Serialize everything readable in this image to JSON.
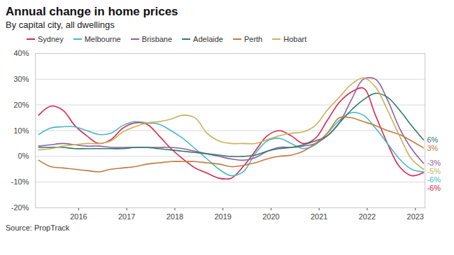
{
  "chart_data": {
    "type": "line",
    "title": "Annual change in home prices",
    "subtitle": "By capital city, all dwellings",
    "source": "Source: PropTrack",
    "legend": "top",
    "grid": true,
    "x": [
      2015.17,
      2015.42,
      2015.67,
      2015.92,
      2016.17,
      2016.42,
      2016.67,
      2016.92,
      2017.17,
      2017.42,
      2017.67,
      2017.92,
      2018.17,
      2018.42,
      2018.67,
      2018.92,
      2019.17,
      2019.42,
      2019.67,
      2019.92,
      2020.17,
      2020.42,
      2020.67,
      2020.92,
      2021.17,
      2021.42,
      2021.67,
      2021.92,
      2022.17,
      2022.42,
      2022.67,
      2022.92,
      2023.17
    ],
    "xlim": [
      2015.1,
      2023.2
    ],
    "xticks": [
      2016,
      2017,
      2018,
      2019,
      2020,
      2021,
      2022,
      2023
    ],
    "ylim": [
      -20,
      40
    ],
    "yticks": [
      {
        "value": -20,
        "label": "-20%"
      },
      {
        "value": -10,
        "label": "-10%"
      },
      {
        "value": 0,
        "label": "0%"
      },
      {
        "value": 10,
        "label": "10%"
      },
      {
        "value": 20,
        "label": "20%"
      },
      {
        "value": 30,
        "label": "30%"
      },
      {
        "value": 40,
        "label": "40%"
      }
    ],
    "series": [
      {
        "name": "Sydney",
        "color": "#d8264f",
        "values": [
          16,
          19.5,
          18,
          12,
          8,
          5,
          6.5,
          11,
          13,
          12.5,
          8,
          3,
          -1,
          -4.5,
          -6.5,
          -8.5,
          -8.5,
          -4,
          2,
          8,
          10,
          8,
          5,
          7,
          14,
          21,
          25,
          26.5,
          16,
          5,
          -4,
          -7.5,
          -6.3
        ]
      },
      {
        "name": "Melbourne",
        "color": "#45b8c8",
        "values": [
          8.5,
          11,
          11.5,
          11.5,
          10,
          8.5,
          9,
          12,
          13.5,
          13,
          12.5,
          10,
          7,
          3,
          -1,
          -5,
          -7.5,
          -6,
          1,
          6,
          7,
          5,
          3,
          4.5,
          9,
          14,
          17,
          16,
          11,
          5,
          -1,
          -5,
          -6
        ]
      },
      {
        "name": "Brisbane",
        "color": "#8f5fa0",
        "values": [
          4,
          4.5,
          5,
          4.5,
          4,
          4,
          3.5,
          3.5,
          3.5,
          3.5,
          3.5,
          3.5,
          3,
          2,
          1,
          0,
          -1,
          -1.5,
          -0.5,
          2,
          3.5,
          3.5,
          4,
          5,
          8,
          13,
          22,
          30,
          30,
          22,
          11,
          3,
          -2.7
        ]
      },
      {
        "name": "Adelaide",
        "color": "#2e7a6a",
        "values": [
          3.5,
          3.5,
          3.5,
          3,
          3,
          3,
          3,
          3,
          3.5,
          3.5,
          3,
          2.5,
          2,
          1.5,
          1,
          0.5,
          0,
          0,
          0.5,
          2,
          3,
          3.5,
          4.5,
          6,
          8,
          13,
          18,
          22,
          24.5,
          23,
          18,
          12,
          6.4
        ]
      },
      {
        "name": "Perth",
        "color": "#c47a3c",
        "values": [
          -1.5,
          -4,
          -4.5,
          -5,
          -5.5,
          -6,
          -5,
          -4.5,
          -4,
          -3,
          -2.5,
          -2,
          -2,
          -2,
          -2.5,
          -3,
          -4,
          -3.5,
          -2.5,
          -1,
          0,
          0.5,
          2,
          5,
          9,
          15,
          15,
          13.5,
          12,
          10,
          8.5,
          6,
          3.3
        ]
      },
      {
        "name": "Hobart",
        "color": "#c9b25a",
        "values": [
          2.5,
          3,
          4,
          4.5,
          5,
          5,
          6,
          9.5,
          11.5,
          13,
          13.5,
          14.5,
          16,
          15,
          9,
          6,
          5,
          5,
          5,
          6.5,
          8,
          9,
          9.5,
          12,
          18,
          23,
          28,
          30.5,
          27,
          18,
          8,
          -1,
          -5
        ]
      }
    ],
    "annotations": [
      {
        "series": "Adelaide",
        "text": "6%"
      },
      {
        "series": "Perth",
        "text": "3%"
      },
      {
        "series": "Brisbane",
        "text": "-3%"
      },
      {
        "series": "Hobart",
        "text": "-5%"
      },
      {
        "series": "Melbourne",
        "text": "-6%"
      },
      {
        "series": "Sydney",
        "text": "-6%"
      }
    ]
  }
}
